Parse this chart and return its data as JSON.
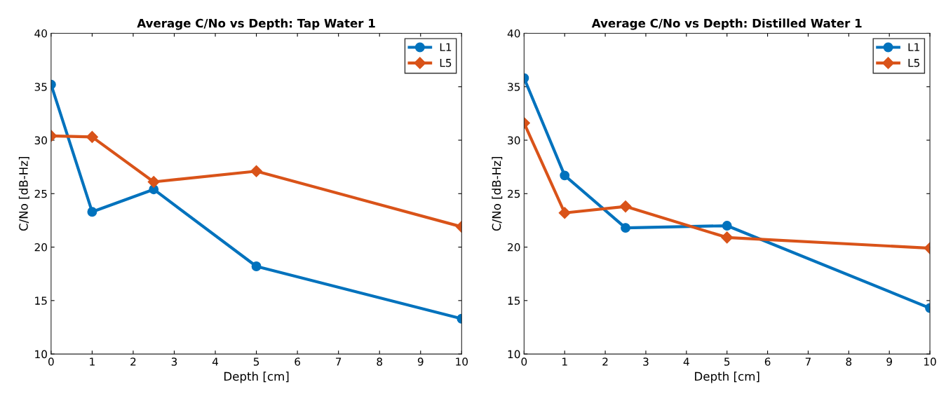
{
  "chart_data": [
    {
      "type": "line",
      "title": "Average C/No vs Depth: Tap Water 1",
      "xlabel": "Depth [cm]",
      "ylabel": "C/No [dB-Hz]",
      "xlim": [
        0,
        10
      ],
      "xticks": [
        0,
        1,
        2,
        3,
        4,
        5,
        6,
        7,
        8,
        9,
        10
      ],
      "ylim": [
        10,
        40
      ],
      "yticks": [
        10,
        15,
        20,
        25,
        30,
        35,
        40
      ],
      "grid": false,
      "legend": "top right",
      "line_style": "solid",
      "x": [
        0,
        1,
        2.5,
        5,
        10
      ],
      "series": [
        {
          "name": "L1",
          "color": "#0072bd",
          "marker": "circle",
          "values": [
            35.2,
            23.3,
            25.4,
            18.2,
            13.3
          ]
        },
        {
          "name": "L5",
          "color": "#d95319",
          "marker": "diamond",
          "values": [
            30.4,
            30.3,
            26.1,
            27.1,
            21.9
          ]
        }
      ]
    },
    {
      "type": "line",
      "title": "Average C/No vs Depth: Distilled Water 1",
      "xlabel": "Depth [cm]",
      "ylabel": "C/No [dB-Hz]",
      "xlim": [
        0,
        10
      ],
      "xticks": [
        0,
        1,
        2,
        3,
        4,
        5,
        6,
        7,
        8,
        9,
        10
      ],
      "ylim": [
        10,
        40
      ],
      "yticks": [
        10,
        15,
        20,
        25,
        30,
        35,
        40
      ],
      "grid": false,
      "legend": "top right",
      "line_style": "solid",
      "x": [
        0,
        1,
        2.5,
        5,
        10
      ],
      "series": [
        {
          "name": "L1",
          "color": "#0072bd",
          "marker": "circle",
          "values": [
            35.8,
            26.7,
            21.8,
            22.0,
            14.3
          ]
        },
        {
          "name": "L5",
          "color": "#d95319",
          "marker": "diamond",
          "values": [
            31.6,
            23.2,
            23.8,
            20.9,
            19.9
          ]
        }
      ]
    }
  ]
}
